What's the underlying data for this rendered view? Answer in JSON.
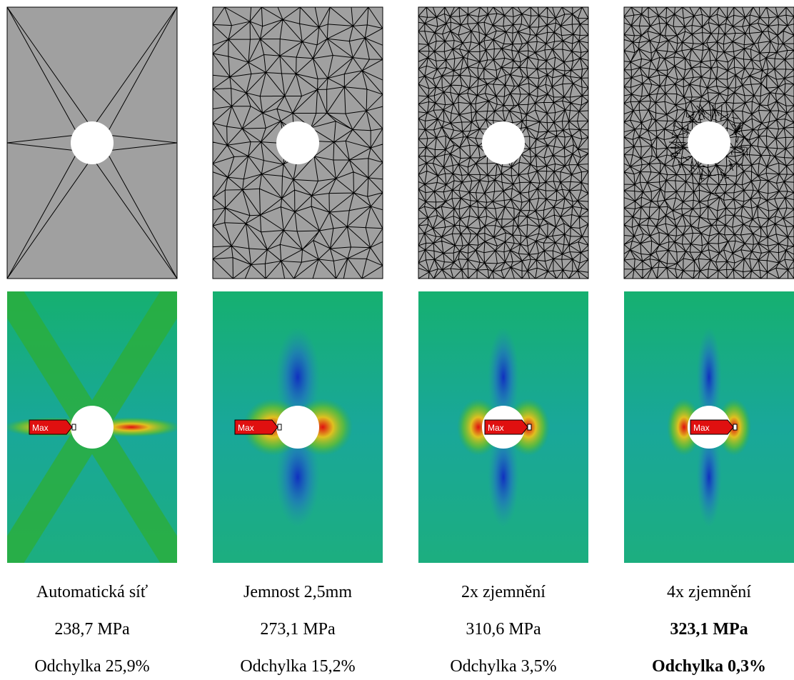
{
  "columns": [
    {
      "mesh": "Automatická síť",
      "stress": "238,7 MPa",
      "deviation": "Odchylka 25,9%",
      "bold": false
    },
    {
      "mesh": "Jemnost 2,5mm",
      "stress": "273,1 MPa",
      "deviation": "Odchylka 15,2%",
      "bold": false
    },
    {
      "mesh": "2x zjemnění",
      "stress": "310,6 MPa",
      "deviation": "Odchylka 3,5%",
      "bold": false
    },
    {
      "mesh": "4x zjemnění",
      "stress": "323,1 MPa",
      "deviation": "Odchylka 0,3%",
      "bold": true
    }
  ],
  "max_label": "Max"
}
